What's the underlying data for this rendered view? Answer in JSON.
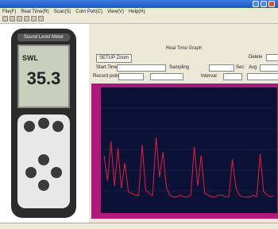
{
  "window": {
    "menu": [
      "File(F)",
      "Real Time(R)",
      "Scan(S)",
      "Com Port(C)",
      "View(V)",
      "Help(H)"
    ]
  },
  "meter": {
    "brand": "Sound Level Meter",
    "unit": "SWL",
    "reading": "35.3"
  },
  "panel": {
    "title": "Real Time Graph",
    "zoom_button": "SETUP Zoom",
    "start_time_label": "Start Time",
    "sampling_label": "Sampling",
    "sec_label": "Sec",
    "avg_label": "Avg",
    "record_label": "Record point",
    "interval_label": "Interval",
    "delete_label": "Delete"
  },
  "graph": {
    "values": [
      62,
      48,
      70,
      45,
      66,
      44,
      58,
      42,
      41,
      40,
      40,
      68,
      43,
      41,
      40,
      72,
      50,
      64,
      44,
      40,
      39,
      39,
      40,
      39,
      39,
      40,
      67,
      45,
      62,
      41,
      40,
      39,
      39,
      40,
      40,
      39,
      39,
      60,
      44,
      40,
      39,
      39,
      39,
      40,
      39,
      63,
      42,
      40,
      39,
      40
    ]
  }
}
